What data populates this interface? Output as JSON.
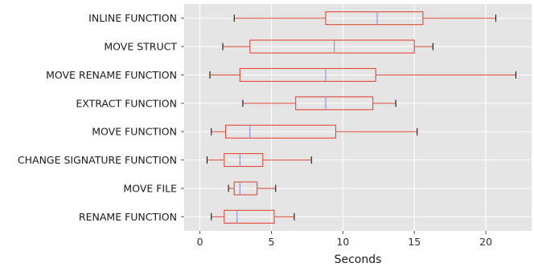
{
  "chart_data": {
    "type": "boxplot",
    "orientation": "horizontal",
    "xlabel": "Seconds",
    "ylabel": "",
    "xlim": [
      -1.1,
      23.2
    ],
    "xticks": [
      0,
      5,
      10,
      15,
      20
    ],
    "grid": true,
    "style": "ggplot",
    "colors": {
      "background": "#e5e5e5",
      "grid": "#ffffff",
      "box": "#e24a33",
      "median": "#8b8be0",
      "whisker": "#e24a33",
      "cap": "#000000"
    },
    "categories": [
      "INLINE FUNCTION",
      "MOVE STRUCT",
      "MOVE RENAME FUNCTION",
      "EXTRACT FUNCTION",
      "MOVE FUNCTION",
      "CHANGE SIGNATURE FUNCTION",
      "MOVE FILE",
      "RENAME FUNCTION"
    ],
    "boxes": [
      {
        "label": "INLINE FUNCTION",
        "min": 2.4,
        "q1": 8.8,
        "median": 12.4,
        "q3": 15.6,
        "max": 20.7
      },
      {
        "label": "MOVE STRUCT",
        "min": 1.6,
        "q1": 3.5,
        "median": 9.4,
        "q3": 15.0,
        "max": 16.3
      },
      {
        "label": "MOVE RENAME FUNCTION",
        "min": 0.7,
        "q1": 2.8,
        "median": 8.8,
        "q3": 12.3,
        "max": 22.1
      },
      {
        "label": "EXTRACT FUNCTION",
        "min": 3.0,
        "q1": 6.7,
        "median": 8.8,
        "q3": 12.1,
        "max": 13.7
      },
      {
        "label": "MOVE FUNCTION",
        "min": 0.8,
        "q1": 1.8,
        "median": 3.5,
        "q3": 9.5,
        "max": 15.2
      },
      {
        "label": "CHANGE SIGNATURE FUNCTION",
        "min": 0.5,
        "q1": 1.7,
        "median": 2.8,
        "q3": 4.4,
        "max": 7.8
      },
      {
        "label": "MOVE FILE",
        "min": 2.0,
        "q1": 2.4,
        "median": 2.8,
        "q3": 4.0,
        "max": 5.3
      },
      {
        "label": "RENAME FUNCTION",
        "min": 0.8,
        "q1": 1.7,
        "median": 2.6,
        "q3": 5.2,
        "max": 6.6
      }
    ]
  }
}
